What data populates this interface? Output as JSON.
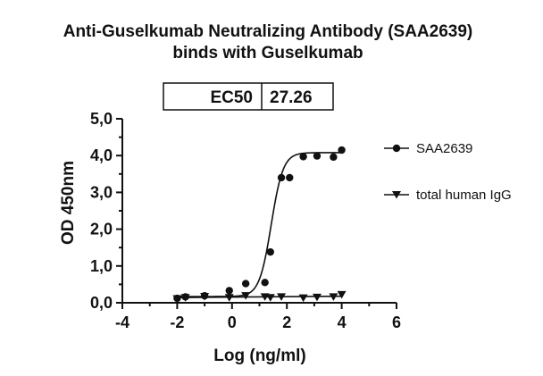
{
  "chart_data": {
    "type": "scatter",
    "title": "Anti-Guselkumab Neutralizing Antibody (SAA2639)",
    "subtitle": "binds with Guselkumab",
    "xlabel": "Log (ng/ml)",
    "ylabel": "OD 450nm",
    "xlim": [
      -4,
      6
    ],
    "ylim": [
      0,
      5
    ],
    "x_ticks": [
      "-4",
      "-2",
      "0",
      "2",
      "4",
      "6"
    ],
    "y_ticks": [
      "0,0",
      "1,0",
      "2,0",
      "3,0",
      "4,0",
      "5,0"
    ],
    "grid": false,
    "legend_position": "right",
    "ec50_table": {
      "label": "EC50",
      "value": "27.26"
    },
    "series": [
      {
        "name": "SAA2639",
        "marker": "circle",
        "fit_curve": true,
        "x": [
          -2.0,
          -1.7,
          -1.0,
          -0.1,
          0.5,
          1.2,
          1.4,
          1.8,
          2.1,
          2.6,
          3.1,
          3.7,
          4.0
        ],
        "y": [
          0.12,
          0.16,
          0.19,
          0.33,
          0.52,
          0.55,
          1.38,
          3.4,
          3.4,
          3.97,
          3.99,
          3.96,
          4.15
        ]
      },
      {
        "name": "total human IgG",
        "marker": "triangle-down",
        "fit_curve": true,
        "x": [
          -2.0,
          -1.7,
          -1.0,
          -0.1,
          0.5,
          1.2,
          1.4,
          1.8,
          2.6,
          3.1,
          3.7,
          4.0
        ],
        "y": [
          0.11,
          0.14,
          0.17,
          0.14,
          0.19,
          0.16,
          0.14,
          0.16,
          0.13,
          0.15,
          0.16,
          0.22
        ]
      }
    ],
    "fit": {
      "SAA2639": {
        "bottom": 0.17,
        "top": 4.08,
        "logEC50": 1.43,
        "hill": 2.0
      },
      "total human IgG": {
        "intercept": 0.13,
        "slope": 0.006
      }
    }
  }
}
